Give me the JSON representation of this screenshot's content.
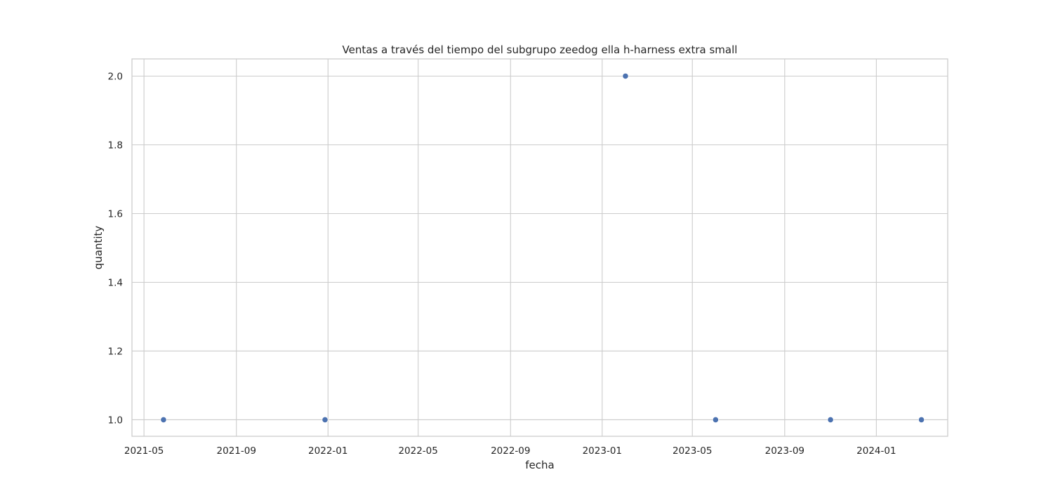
{
  "chart_data": {
    "type": "scatter",
    "title": "Ventas a través del tiempo del subgrupo zeedog ella h-harness extra small",
    "xlabel": "fecha",
    "ylabel": "quantity",
    "x_ticks": [
      "2021-05",
      "2021-09",
      "2022-01",
      "2022-05",
      "2022-09",
      "2023-01",
      "2023-05",
      "2023-09",
      "2024-01"
    ],
    "y_ticks": [
      "1.0",
      "1.2",
      "1.4",
      "1.6",
      "1.8",
      "2.0"
    ],
    "xlim": [
      "2021-04-15",
      "2024-04-05"
    ],
    "ylim": [
      0.952,
      2.05
    ],
    "grid": true,
    "marker_color": "#4c72b0",
    "series": [
      {
        "x": [
          "2021-05-27",
          "2021-12-28",
          "2023-02-01",
          "2023-06-01",
          "2023-11-01",
          "2024-03-01"
        ],
        "y": [
          1,
          1,
          2,
          1,
          1,
          1
        ]
      }
    ]
  }
}
